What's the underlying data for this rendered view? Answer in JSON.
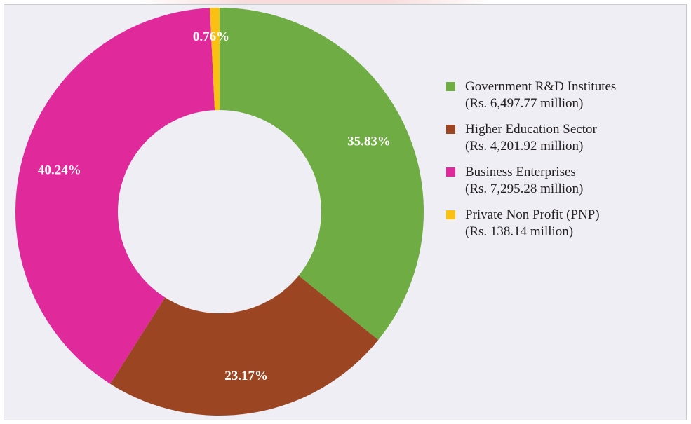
{
  "chart_data": {
    "type": "pie",
    "donut": true,
    "title": "",
    "legend_position": "right",
    "series": [
      {
        "name": "Government R&D Institutes",
        "amount_label": "(Rs. 6,497.77 million)",
        "percent": 35.83,
        "label": "35.83%",
        "color": "#6fac43"
      },
      {
        "name": "Higher Education Sector",
        "amount_label": "(Rs. 4,201.92 million)",
        "percent": 23.17,
        "label": "23.17%",
        "color": "#9c4522"
      },
      {
        "name": "Business Enterprises",
        "amount_label": "(Rs. 7,295.28 million)",
        "percent": 40.24,
        "label": "40.24%",
        "color": "#e0299a"
      },
      {
        "name": "Private Non Profit (PNP)",
        "amount_label": "(Rs. 138.14 million)",
        "percent": 0.76,
        "label": "0.76%",
        "color": "#fbc112"
      }
    ]
  }
}
